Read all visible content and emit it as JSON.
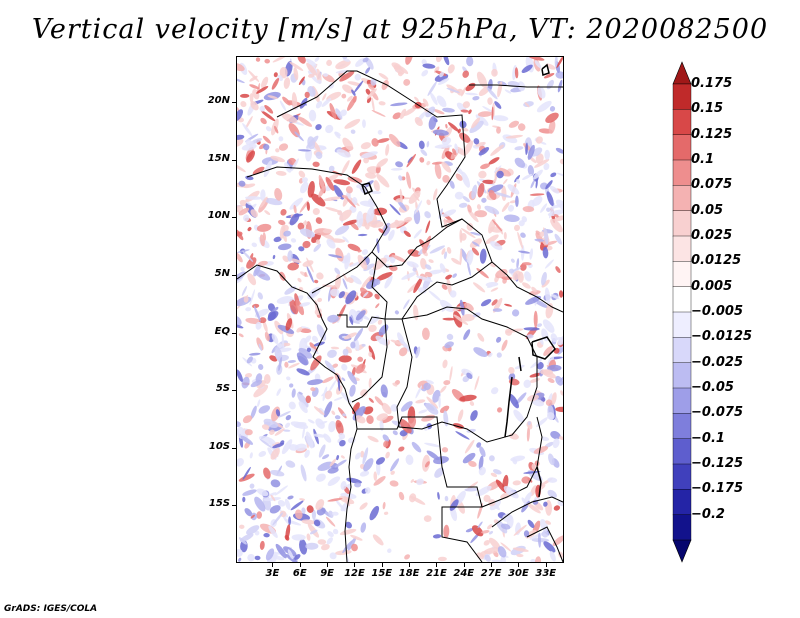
{
  "title": "Vertical velocity [m/s] at 925hPa, VT: 2020082500",
  "footer": "GrADS: IGES/COLA",
  "map": {
    "lon_range": [
      -1,
      35
    ],
    "lat_range": [
      -20,
      24
    ],
    "lat_ticks": [
      {
        "value": 20,
        "label": "20N"
      },
      {
        "value": 15,
        "label": "15N"
      },
      {
        "value": 10,
        "label": "10N"
      },
      {
        "value": 5,
        "label": "5N"
      },
      {
        "value": 0,
        "label": "EQ"
      },
      {
        "value": -5,
        "label": "5S"
      },
      {
        "value": -10,
        "label": "10S"
      },
      {
        "value": -15,
        "label": "15S"
      }
    ],
    "lon_ticks": [
      {
        "value": 3,
        "label": "3E"
      },
      {
        "value": 6,
        "label": "6E"
      },
      {
        "value": 9,
        "label": "9E"
      },
      {
        "value": 12,
        "label": "12E"
      },
      {
        "value": 15,
        "label": "15E"
      },
      {
        "value": 18,
        "label": "18E"
      },
      {
        "value": 21,
        "label": "21E"
      },
      {
        "value": 24,
        "label": "24E"
      },
      {
        "value": 27,
        "label": "27E"
      },
      {
        "value": 30,
        "label": "30E"
      },
      {
        "value": 33,
        "label": "33E"
      }
    ]
  },
  "colorbar": {
    "colors": [
      "#a01818",
      "#c02a2a",
      "#d84848",
      "#e46a6a",
      "#ee8e8e",
      "#f4b2b2",
      "#f8d0d0",
      "#fce4e4",
      "#fff4f4",
      "#ffffff",
      "#eeeeff",
      "#d8d8fa",
      "#bcbcf2",
      "#9e9ee8",
      "#7e7edc",
      "#5e5ece",
      "#4040bc",
      "#2424a6",
      "#12128c",
      "#06066e"
    ],
    "labels": [
      "0.175",
      "0.15",
      "0.125",
      "0.1",
      "0.075",
      "0.05",
      "0.025",
      "0.0125",
      "0.005",
      "−0.005",
      "−0.0125",
      "−0.025",
      "−0.05",
      "−0.075",
      "−0.1",
      "−0.125",
      "−0.175",
      "−0.2"
    ]
  }
}
